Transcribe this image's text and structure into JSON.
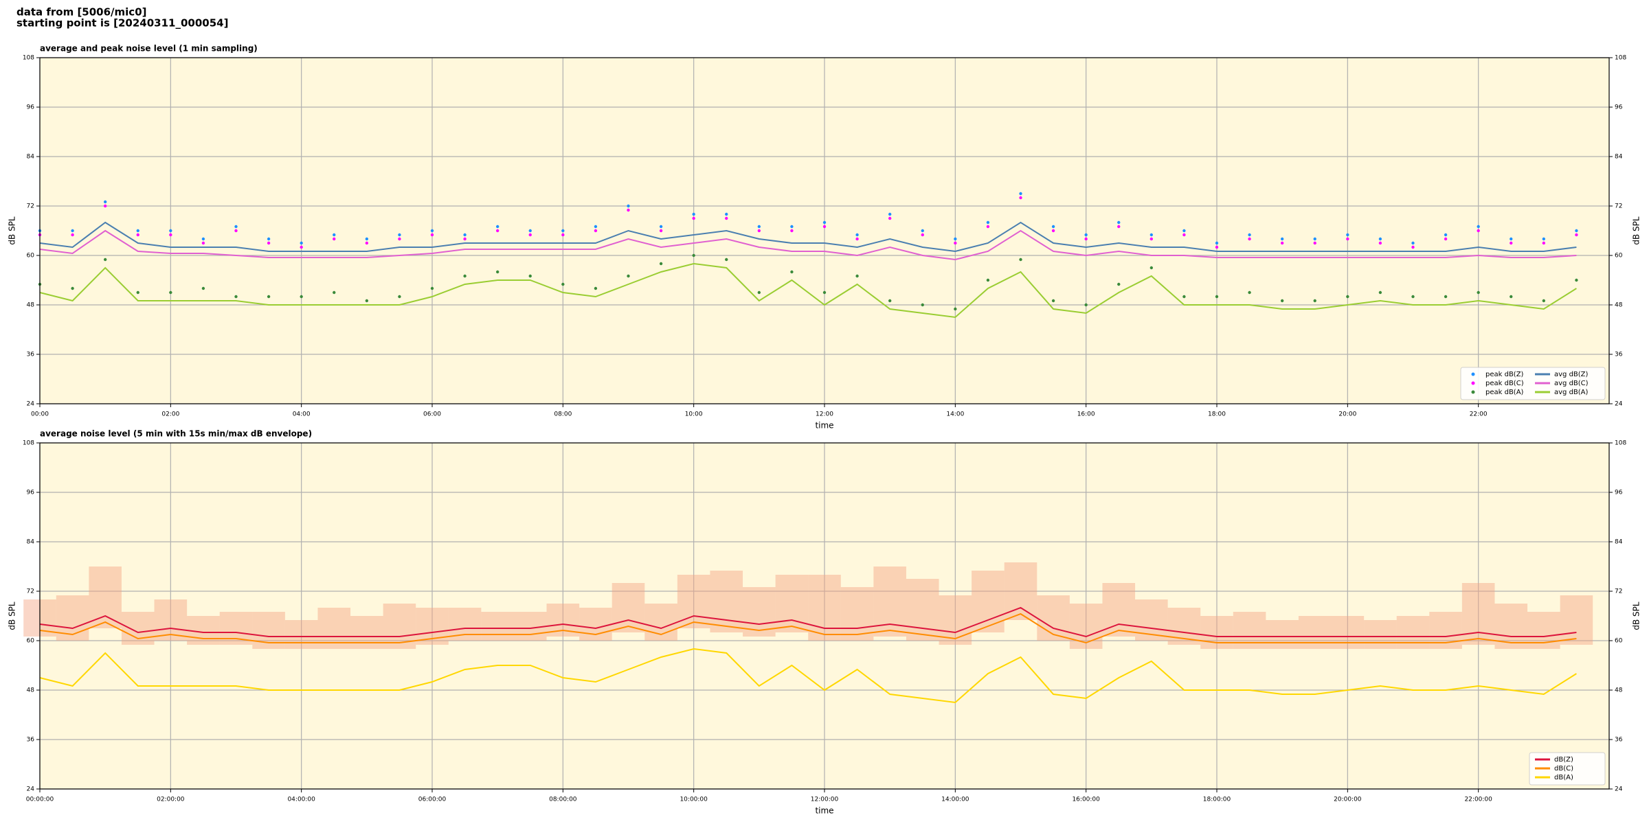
{
  "header": {
    "line1": "data from [5006/mic0]",
    "line2": "starting point is [20240311_000054]"
  },
  "chart_data": [
    {
      "type": "line",
      "title": "average and peak noise level (1 min sampling)",
      "xlabel": "time",
      "ylabel": "dB SPL",
      "background": "#fff8dc",
      "grid": true,
      "legend_loc": "lower right",
      "legend_columns": 2,
      "xlim": [
        0,
        24
      ],
      "ylim": [
        24,
        108
      ],
      "xticks": [
        {
          "value": 0,
          "label": "00:00"
        },
        {
          "value": 2,
          "label": "02:00"
        },
        {
          "value": 4,
          "label": "04:00"
        },
        {
          "value": 6,
          "label": "06:00"
        },
        {
          "value": 8,
          "label": "08:00"
        },
        {
          "value": 10,
          "label": "10:00"
        },
        {
          "value": 12,
          "label": "12:00"
        },
        {
          "value": 14,
          "label": "14:00"
        },
        {
          "value": 16,
          "label": "16:00"
        },
        {
          "value": 18,
          "label": "18:00"
        },
        {
          "value": 20,
          "label": "20:00"
        },
        {
          "value": 22,
          "label": "22:00"
        }
      ],
      "yticks": [
        24,
        36,
        48,
        60,
        72,
        84,
        96,
        108
      ],
      "x": [
        0,
        0.5,
        1,
        1.5,
        2,
        2.5,
        3,
        3.5,
        4,
        4.5,
        5,
        5.5,
        6,
        6.5,
        7,
        7.5,
        8,
        8.5,
        9,
        9.5,
        10,
        10.5,
        11,
        11.5,
        12,
        12.5,
        13,
        13.5,
        14,
        14.5,
        15,
        15.5,
        16,
        16.5,
        17,
        17.5,
        18,
        18.5,
        19,
        19.5,
        20,
        20.5,
        21,
        21.5,
        22,
        22.5,
        23,
        23.5
      ],
      "series": [
        {
          "name": "peak dB(Z)",
          "style": "points",
          "color": "#1e90ff",
          "values": [
            66,
            66,
            73,
            66,
            66,
            64,
            67,
            64,
            63,
            65,
            64,
            65,
            66,
            65,
            67,
            66,
            66,
            67,
            72,
            67,
            70,
            70,
            67,
            67,
            68,
            65,
            70,
            66,
            64,
            68,
            75,
            67,
            65,
            68,
            65,
            66,
            63,
            65,
            64,
            64,
            65,
            64,
            63,
            65,
            67,
            64,
            64,
            66
          ]
        },
        {
          "name": "peak dB(C)",
          "style": "points",
          "color": "#ff00ff",
          "values": [
            65,
            65,
            72,
            65,
            65,
            63,
            66,
            63,
            62,
            64,
            63,
            64,
            65,
            64,
            66,
            65,
            65,
            66,
            71,
            66,
            69,
            69,
            66,
            66,
            67,
            64,
            69,
            65,
            63,
            67,
            74,
            66,
            64,
            67,
            64,
            65,
            62,
            64,
            63,
            63,
            64,
            63,
            62,
            64,
            66,
            63,
            63,
            65
          ]
        },
        {
          "name": "peak dB(A)",
          "style": "points",
          "color": "#3a8a3a",
          "values": [
            53,
            52,
            59,
            51,
            51,
            52,
            50,
            50,
            50,
            51,
            49,
            50,
            52,
            55,
            56,
            55,
            53,
            52,
            55,
            58,
            60,
            59,
            51,
            56,
            51,
            55,
            49,
            48,
            47,
            54,
            59,
            49,
            48,
            53,
            57,
            50,
            50,
            51,
            49,
            49,
            50,
            51,
            50,
            50,
            51,
            50,
            49,
            54
          ]
        },
        {
          "name": "avg dB(Z)",
          "style": "line",
          "color": "#4a7fb0",
          "values": [
            63,
            62,
            68,
            63,
            62,
            62,
            62,
            61,
            61,
            61,
            61,
            62,
            62,
            63,
            63,
            63,
            63,
            63,
            66,
            64,
            65,
            66,
            64,
            63,
            63,
            62,
            64,
            62,
            61,
            63,
            68,
            63,
            62,
            63,
            62,
            62,
            61,
            61,
            61,
            61,
            61,
            61,
            61,
            61,
            62,
            61,
            61,
            62
          ]
        },
        {
          "name": "avg dB(C)",
          "style": "line",
          "color": "#e060d0",
          "values": [
            61.5,
            60.5,
            66,
            61,
            60.5,
            60.5,
            60,
            59.5,
            59.5,
            59.5,
            59.5,
            60,
            60.5,
            61.5,
            61.5,
            61.5,
            61.5,
            61.5,
            64,
            62,
            63,
            64,
            62,
            61,
            61,
            60,
            62,
            60,
            59,
            61,
            66,
            61,
            60,
            61,
            60,
            60,
            59.5,
            59.5,
            59.5,
            59.5,
            59.5,
            59.5,
            59.5,
            59.5,
            60,
            59.5,
            59.5,
            60
          ]
        },
        {
          "name": "avg dB(A)",
          "style": "line",
          "color": "#9acd32",
          "values": [
            51,
            49,
            57,
            49,
            49,
            49,
            49,
            48,
            48,
            48,
            48,
            48,
            50,
            53,
            54,
            54,
            51,
            50,
            53,
            56,
            58,
            57,
            49,
            54,
            48,
            53,
            47,
            46,
            45,
            52,
            56,
            47,
            46,
            51,
            55,
            48,
            48,
            48,
            47,
            47,
            48,
            49,
            48,
            48,
            49,
            48,
            47,
            52
          ]
        }
      ]
    },
    {
      "type": "line",
      "title": "average noise level (5 min with 15s min/max dB envelope)",
      "xlabel": "time",
      "ylabel": "dB SPL",
      "background": "#fff8dc",
      "grid": true,
      "legend_loc": "lower right",
      "legend_columns": 1,
      "xlim": [
        0,
        24
      ],
      "ylim": [
        24,
        108
      ],
      "xticks": [
        {
          "value": 0,
          "label": "00:00:00"
        },
        {
          "value": 2,
          "label": "02:00:00"
        },
        {
          "value": 4,
          "label": "04:00:00"
        },
        {
          "value": 6,
          "label": "06:00:00"
        },
        {
          "value": 8,
          "label": "08:00:00"
        },
        {
          "value": 10,
          "label": "10:00:00"
        },
        {
          "value": 12,
          "label": "12:00:00"
        },
        {
          "value": 14,
          "label": "14:00:00"
        },
        {
          "value": 16,
          "label": "16:00:00"
        },
        {
          "value": 18,
          "label": "18:00:00"
        },
        {
          "value": 20,
          "label": "20:00:00"
        },
        {
          "value": 22,
          "label": "22:00:00"
        }
      ],
      "yticks": [
        24,
        36,
        48,
        60,
        72,
        84,
        96,
        108
      ],
      "x": [
        0,
        0.5,
        1,
        1.5,
        2,
        2.5,
        3,
        3.5,
        4,
        4.5,
        5,
        5.5,
        6,
        6.5,
        7,
        7.5,
        8,
        8.5,
        9,
        9.5,
        10,
        10.5,
        11,
        11.5,
        12,
        12.5,
        13,
        13.5,
        14,
        14.5,
        15,
        15.5,
        16,
        16.5,
        17,
        17.5,
        18,
        18.5,
        19,
        19.5,
        20,
        20.5,
        21,
        21.5,
        22,
        22.5,
        23,
        23.5
      ],
      "envelope": {
        "color": "#f4a582",
        "lower": [
          61,
          60,
          63,
          59,
          60,
          59,
          59,
          58,
          58,
          58,
          58,
          58,
          59,
          60,
          60,
          60,
          61,
          60,
          62,
          60,
          63,
          62,
          61,
          62,
          60,
          60,
          61,
          60,
          59,
          62,
          65,
          60,
          58,
          61,
          60,
          59,
          58,
          58,
          58,
          58,
          58,
          58,
          58,
          58,
          59,
          58,
          58,
          59
        ],
        "upper": [
          70,
          71,
          78,
          67,
          70,
          66,
          67,
          67,
          65,
          68,
          66,
          69,
          68,
          68,
          67,
          67,
          69,
          68,
          74,
          69,
          76,
          77,
          73,
          76,
          76,
          73,
          78,
          75,
          71,
          77,
          79,
          71,
          69,
          74,
          70,
          68,
          66,
          67,
          65,
          66,
          66,
          65,
          66,
          67,
          74,
          69,
          67,
          71
        ]
      },
      "series": [
        {
          "name": "dB(Z)",
          "style": "line",
          "color": "#dc143c",
          "values": [
            64,
            63,
            66,
            62,
            63,
            62,
            62,
            61,
            61,
            61,
            61,
            61,
            62,
            63,
            63,
            63,
            64,
            63,
            65,
            63,
            66,
            65,
            64,
            65,
            63,
            63,
            64,
            63,
            62,
            65,
            68,
            63,
            61,
            64,
            63,
            62,
            61,
            61,
            61,
            61,
            61,
            61,
            61,
            61,
            62,
            61,
            61,
            62
          ]
        },
        {
          "name": "dB(C)",
          "style": "line",
          "color": "#ff8c00",
          "values": [
            62.5,
            61.5,
            64.5,
            60.5,
            61.5,
            60.5,
            60.5,
            59.5,
            59.5,
            59.5,
            59.5,
            59.5,
            60.5,
            61.5,
            61.5,
            61.5,
            62.5,
            61.5,
            63.5,
            61.5,
            64.5,
            63.5,
            62.5,
            63.5,
            61.5,
            61.5,
            62.5,
            61.5,
            60.5,
            63.5,
            66.5,
            61.5,
            59.5,
            62.5,
            61.5,
            60.5,
            59.5,
            59.5,
            59.5,
            59.5,
            59.5,
            59.5,
            59.5,
            59.5,
            60.5,
            59.5,
            59.5,
            60.5
          ]
        },
        {
          "name": "dB(A)",
          "style": "line",
          "color": "#ffd700",
          "values": [
            51,
            49,
            57,
            49,
            49,
            49,
            49,
            48,
            48,
            48,
            48,
            48,
            50,
            53,
            54,
            54,
            51,
            50,
            53,
            56,
            58,
            57,
            49,
            54,
            48,
            53,
            47,
            46,
            45,
            52,
            56,
            47,
            46,
            51,
            55,
            48,
            48,
            48,
            47,
            47,
            48,
            49,
            48,
            48,
            49,
            48,
            47,
            52
          ]
        }
      ]
    }
  ]
}
